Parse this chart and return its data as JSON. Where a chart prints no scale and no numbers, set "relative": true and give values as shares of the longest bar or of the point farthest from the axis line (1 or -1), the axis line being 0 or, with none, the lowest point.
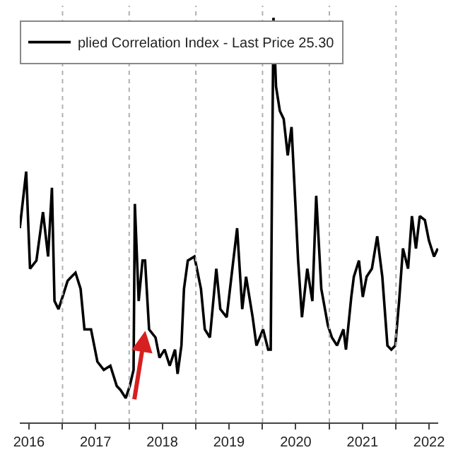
{
  "chart_data": {
    "type": "line",
    "relative": true,
    "grid": "x",
    "legend": "top left",
    "line_style": "solid",
    "marker": "none",
    "xlim": [
      "2016-05-12",
      "2022-08-20"
    ],
    "xticks": [
      {
        "value": "2016-07-01",
        "label": "2016"
      },
      {
        "value": "2017-01-01",
        "label": null
      },
      {
        "value": "2017-07-01",
        "label": "2017"
      },
      {
        "value": "2018-01-01",
        "label": null
      },
      {
        "value": "2018-07-01",
        "label": "2018"
      },
      {
        "value": "2019-01-01",
        "label": null
      },
      {
        "value": "2019-07-01",
        "label": "2019"
      },
      {
        "value": "2020-01-01",
        "label": null
      },
      {
        "value": "2020-07-01",
        "label": "2020"
      },
      {
        "value": "2021-01-01",
        "label": null
      },
      {
        "value": "2021-07-01",
        "label": "2021"
      },
      {
        "value": "2022-01-01",
        "label": null
      },
      {
        "value": "2022-07-01",
        "label": "2022"
      }
    ],
    "x": [
      "2016-05-12",
      "2016-06-16",
      "2016-07-07",
      "2016-08-11",
      "2016-09-16",
      "2016-10-14",
      "2016-11-04",
      "2016-11-18",
      "2016-12-10",
      "2017-01-01",
      "2017-01-29",
      "2017-02-19",
      "2017-03-13",
      "2017-04-10",
      "2017-05-01",
      "2017-06-06",
      "2017-07-11",
      "2017-08-15",
      "2017-09-20",
      "2017-10-25",
      "2017-11-15",
      "2017-12-13",
      "2018-01-04",
      "2018-01-25",
      "2018-02-01",
      "2018-02-22",
      "2018-03-15",
      "2018-03-29",
      "2018-04-20",
      "2018-05-25",
      "2018-06-16",
      "2018-07-14",
      "2018-08-11",
      "2018-09-09",
      "2018-09-23",
      "2018-10-14",
      "2018-10-28",
      "2018-11-18",
      "2018-12-24",
      "2019-01-29",
      "2019-02-19",
      "2019-03-19",
      "2019-04-23",
      "2019-05-15",
      "2019-06-19",
      "2019-07-25",
      "2019-08-15",
      "2019-09-12",
      "2019-10-03",
      "2019-11-08",
      "2019-11-29",
      "2020-01-04",
      "2020-02-01",
      "2020-02-15",
      "2020-02-22",
      "2020-03-01",
      "2020-03-15",
      "2020-04-05",
      "2020-04-26",
      "2020-05-18",
      "2020-06-08",
      "2020-06-30",
      "2020-07-14",
      "2020-08-04",
      "2020-09-02",
      "2020-09-30",
      "2020-10-21",
      "2020-11-18",
      "2020-12-24",
      "2021-01-15",
      "2021-02-12",
      "2021-03-19",
      "2021-04-02",
      "2021-05-01",
      "2021-05-15",
      "2021-06-12",
      "2021-07-03",
      "2021-07-24",
      "2021-08-22",
      "2021-09-20",
      "2021-10-18",
      "2021-11-15",
      "2021-12-06",
      "2021-12-28",
      "2022-01-18",
      "2022-02-08",
      "2022-03-08",
      "2022-03-29",
      "2022-04-20",
      "2022-05-11",
      "2022-06-08",
      "2022-06-30",
      "2022-07-28",
      "2022-08-18"
    ],
    "series": [
      {
        "name": "plied Correlation Index - Last Price 25.30",
        "color": "#000000",
        "values": [
          0.48,
          0.62,
          0.38,
          0.4,
          0.52,
          0.41,
          0.58,
          0.3,
          0.28,
          0.31,
          0.35,
          0.36,
          0.37,
          0.33,
          0.23,
          0.23,
          0.15,
          0.13,
          0.14,
          0.09,
          0.08,
          0.06,
          0.09,
          0.13,
          0.54,
          0.3,
          0.4,
          0.4,
          0.23,
          0.21,
          0.16,
          0.18,
          0.14,
          0.18,
          0.12,
          0.19,
          0.33,
          0.4,
          0.41,
          0.33,
          0.23,
          0.21,
          0.38,
          0.28,
          0.26,
          0.4,
          0.48,
          0.28,
          0.36,
          0.26,
          0.19,
          0.23,
          0.18,
          0.18,
          0.6,
          1.0,
          0.83,
          0.77,
          0.75,
          0.66,
          0.73,
          0.53,
          0.4,
          0.26,
          0.38,
          0.3,
          0.56,
          0.33,
          0.24,
          0.21,
          0.19,
          0.23,
          0.18,
          0.31,
          0.36,
          0.4,
          0.31,
          0.36,
          0.38,
          0.46,
          0.36,
          0.19,
          0.18,
          0.19,
          0.3,
          0.43,
          0.38,
          0.51,
          0.43,
          0.51,
          0.5,
          0.45,
          0.41,
          0.43
        ]
      }
    ]
  }
}
